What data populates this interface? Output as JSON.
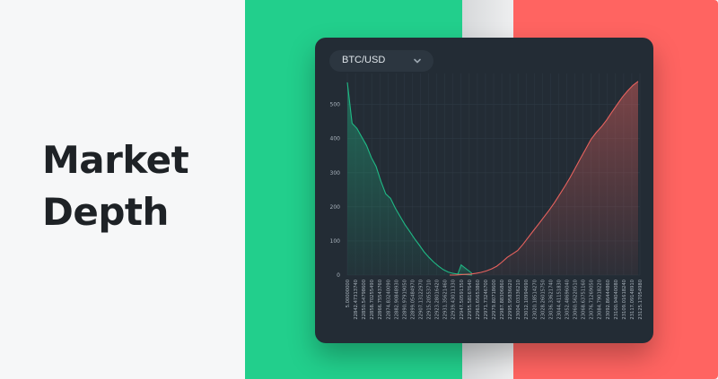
{
  "heading": {
    "line1": "Market",
    "line2": "Depth"
  },
  "selector": {
    "pair": "BTC/USD",
    "icon": "chevron-down-icon"
  },
  "colors": {
    "bid": "#1fb985",
    "ask": "#e8625e",
    "card": "#232c35"
  },
  "chart_data": {
    "type": "area",
    "ylim": [
      0,
      570
    ],
    "yticks": [
      0,
      100,
      200,
      300,
      400,
      500
    ],
    "x_tick_labels": [
      "5.00000000",
      "22842.47313740",
      "22850.54798600",
      "22858.70255490",
      "22866.75543760",
      "22874.83240090",
      "22882.90848930",
      "22890.97919050",
      "22899.05484970",
      "22907.13122970",
      "22915.20553710",
      "22923.28016420",
      "22931.35621460",
      "22939.43011330",
      "22947.50591350",
      "22955.58167640",
      "22963.65653860",
      "22971.73246700",
      "22979.80718600",
      "22987.88306860",
      "22995.95836620",
      "23004.03336210",
      "23012.10994690",
      "23020.18514270",
      "23028.26015750",
      "23036.33621740",
      "23044.41151830",
      "23052.48696040",
      "23060.56220510",
      "23068.63751160",
      "23076.71269050",
      "23084.79018220",
      "23092.86444860",
      "23100.94040080",
      "23109.01618240",
      "23117.09148910",
      "23125.17054980"
    ],
    "series": [
      {
        "side": "bid",
        "values": [
          565,
          445,
          430,
          405,
          380,
          345,
          318,
          275,
          238,
          225,
          196,
          172,
          148,
          128,
          107,
          88,
          68,
          52,
          38,
          26,
          16,
          9,
          5,
          3,
          2,
          1,
          0
        ]
      },
      {
        "side": "ask",
        "values": [
          0,
          0,
          1,
          2,
          3,
          5,
          8,
          12,
          18,
          26,
          38,
          52,
          62,
          72,
          90,
          110,
          130,
          150,
          170,
          190,
          212,
          236,
          260,
          286,
          314,
          342,
          370,
          398,
          418,
          435,
          455,
          478,
          500,
          522,
          540,
          556,
          568
        ]
      }
    ],
    "annotations": [
      {
        "x_index": 14,
        "y": 30,
        "side": "bid"
      }
    ]
  }
}
